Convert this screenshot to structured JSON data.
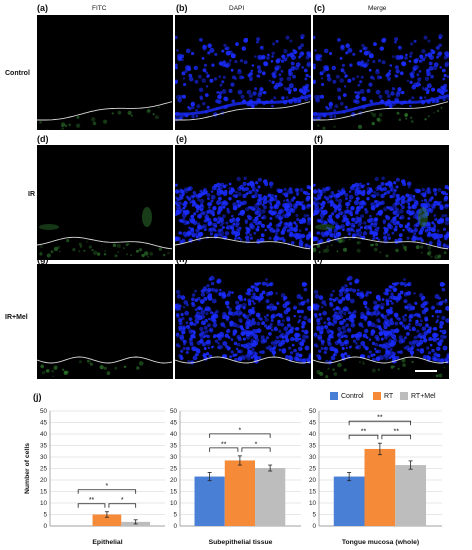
{
  "figure": {
    "panels": [
      "(a)",
      "(b)",
      "(c)",
      "(d)",
      "(e)",
      "(f)",
      "(g)",
      "(h)",
      "(i)"
    ],
    "column_titles": [
      "FITC",
      "DAPI",
      "Merge"
    ],
    "row_labels": [
      "Control",
      "IR",
      "IR+Mel"
    ],
    "chart_panel_label": "(j)",
    "colors": {
      "nuclei": "#1a2cff",
      "fitc": "#2f7a2f",
      "boundary": "#d8d8d8"
    }
  },
  "chart_data": [
    {
      "type": "bar",
      "xlabel": "Epithelial",
      "ylabel": "Number of cells",
      "ylim": [
        0,
        50
      ],
      "yticks": [
        0,
        5,
        10,
        15,
        20,
        25,
        30,
        35,
        40,
        45,
        50
      ],
      "categories": [
        "Control",
        "RT",
        "RT+Mel"
      ],
      "values": [
        0,
        5,
        1.8
      ],
      "errors": [
        0,
        1.2,
        0.9
      ],
      "significance": [
        "*",
        "**",
        "*"
      ]
    },
    {
      "type": "bar",
      "xlabel": "Subepithelial tissue",
      "ylim": [
        0,
        50
      ],
      "yticks": [
        0,
        5,
        10,
        15,
        20,
        25,
        30,
        35,
        40,
        45,
        50
      ],
      "categories": [
        "Control",
        "RT",
        "RT+Mel"
      ],
      "values": [
        21.5,
        28.5,
        25.2
      ],
      "errors": [
        1.8,
        2.0,
        1.3
      ],
      "significance": [
        "*",
        "**",
        "*"
      ]
    },
    {
      "type": "bar",
      "xlabel": "Tongue mucosa (whole)",
      "ylim": [
        0,
        50
      ],
      "yticks": [
        0,
        5,
        10,
        15,
        20,
        25,
        30,
        35,
        40,
        45,
        50
      ],
      "categories": [
        "Control",
        "RT",
        "RT+Mel"
      ],
      "values": [
        21.5,
        33.5,
        26.5
      ],
      "errors": [
        1.8,
        2.5,
        1.8
      ],
      "significance": [
        "**",
        "**",
        "**"
      ]
    }
  ],
  "legend": [
    {
      "label": "Control",
      "color": "#4a7fd6"
    },
    {
      "label": "RT",
      "color": "#f58a38"
    },
    {
      "label": "RT+Mel",
      "color": "#bdbdbd"
    }
  ]
}
